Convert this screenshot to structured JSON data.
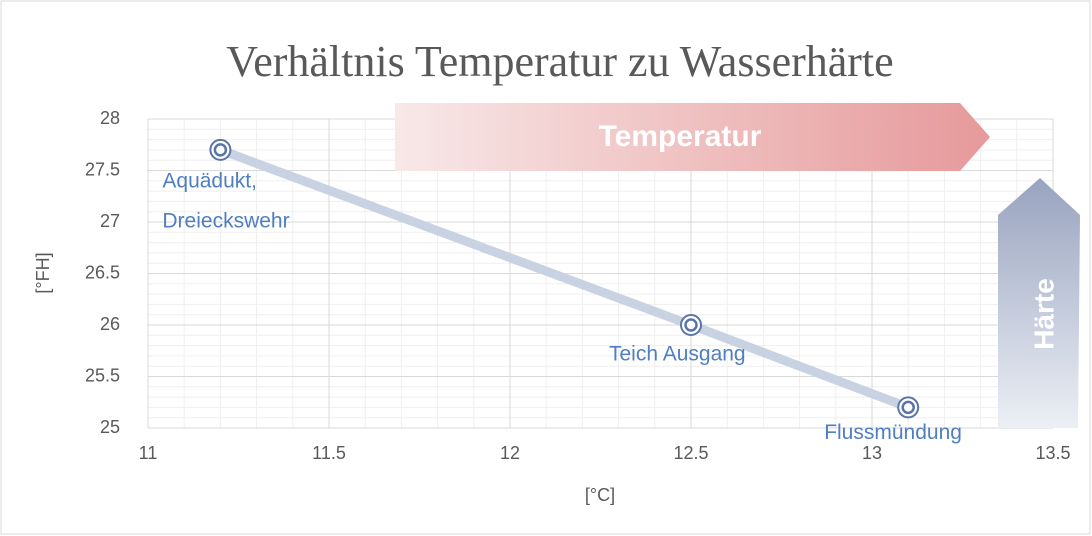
{
  "chart_data": {
    "type": "scatter",
    "title": "Verhältnis Temperatur zu Wasserhärte",
    "x_label": "[°C]",
    "y_label": "[°FH]",
    "x": [
      11.2,
      12.5,
      13.1
    ],
    "series": [
      {
        "color": "#5b74a8",
        "values": [
          27.7,
          26,
          25.2
        ]
      }
    ],
    "point_labels": [
      [
        "Aquädukt,",
        "Dreieckswehr"
      ],
      [
        "Teich Ausgang"
      ],
      [
        "Flussmündung"
      ]
    ],
    "xlim": [
      11,
      13.5
    ],
    "xticks": [
      11,
      11.5,
      12,
      12.5,
      13,
      13.5
    ],
    "ylim": [
      25,
      28
    ],
    "yticks": [
      25,
      25.5,
      26,
      26.5,
      27,
      27.5,
      28
    ],
    "grid": true,
    "annotations": [
      "Temperatur",
      "Härte"
    ]
  }
}
